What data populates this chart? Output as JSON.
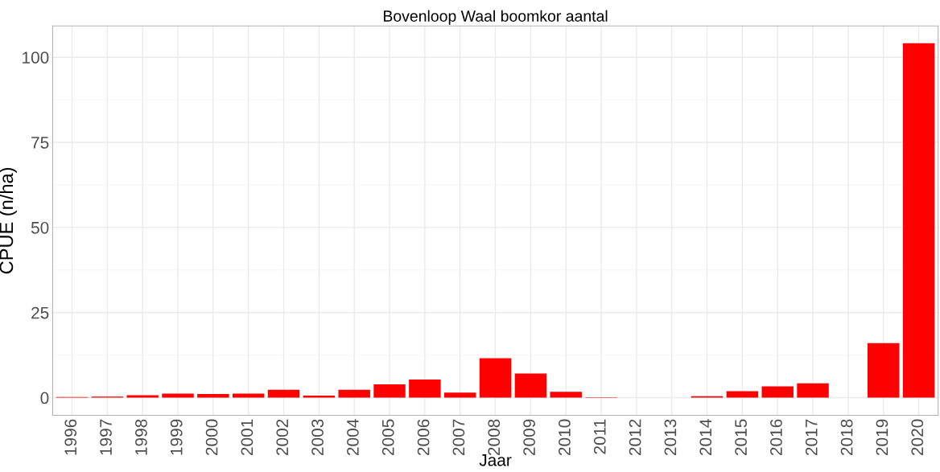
{
  "chart_data": {
    "type": "bar",
    "title": "Bovenloop Waal boomkor aantal",
    "xlabel": "Jaar",
    "ylabel": "CPUE (n/ha)",
    "categories": [
      "1996",
      "1997",
      "1998",
      "1999",
      "2000",
      "2001",
      "2002",
      "2003",
      "2004",
      "2005",
      "2006",
      "2007",
      "2008",
      "2009",
      "2010",
      "2011",
      "2012",
      "2013",
      "2014",
      "2015",
      "2016",
      "2017",
      "2018",
      "2019",
      "2020"
    ],
    "values": [
      0.2,
      0.3,
      0.7,
      1.2,
      1.1,
      1.2,
      2.3,
      0.6,
      2.3,
      3.9,
      5.3,
      1.5,
      11.6,
      7.1,
      1.7,
      0.1,
      0,
      0,
      0.4,
      1.9,
      3.3,
      4.2,
      0,
      16.0,
      104.1
    ],
    "color": "#ff0000",
    "ylim": [
      -5.2,
      109.2
    ],
    "yticks": [
      0,
      25,
      50,
      75,
      100
    ],
    "grid": true
  }
}
